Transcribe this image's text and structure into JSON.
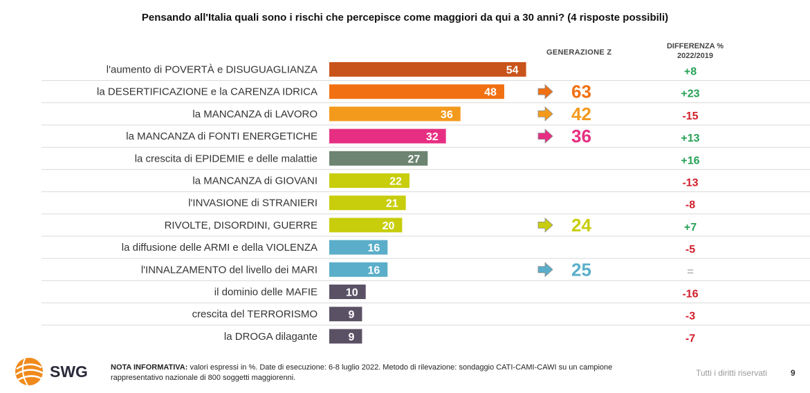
{
  "title": "Pensando all'Italia quali sono i rischi che percepisce come maggiori da qui a 30 anni? (4 risposte possibili)",
  "headers": {
    "genz": "GENERAZIONE Z",
    "diff_line1": "DIFFERENZA %",
    "diff_line2": "2022/2019"
  },
  "colors": {
    "diff_positive": "#27a157",
    "diff_negative": "#d01e2a",
    "diff_neutral": "#bbbbbb",
    "separator": "#d9d9d9"
  },
  "chart_data": {
    "type": "bar",
    "orientation": "horizontal",
    "categories": [
      "l'aumento di POVERTÀ e DISUGUAGLIANZA",
      "la DESERTIFICAZIONE e la CARENZA IDRICA",
      "la MANCANZA di LAVORO",
      "la MANCANZA di FONTI ENERGETICHE",
      "la crescita di EPIDEMIE e delle malattie",
      "la MANCANZA di GIOVANI",
      "l'INVASIONE di STRANIERI",
      "RIVOLTE, DISORDINI, GUERRE",
      "la diffusione delle ARMI e della VIOLENZA",
      "l'INNALZAMENTO del livello dei MARI",
      "il dominio delle MAFIE",
      "crescita del TERRORISMO",
      "la DROGA dilagante"
    ],
    "values": [
      54,
      48,
      36,
      32,
      27,
      22,
      21,
      20,
      16,
      16,
      10,
      9,
      9
    ],
    "bar_colors": [
      "#c9541b",
      "#f07012",
      "#f39a1d",
      "#e62f82",
      "#6c8471",
      "#c8cd0c",
      "#c8cd0c",
      "#c8cd0c",
      "#5aaec9",
      "#5aaec9",
      "#5b5165",
      "#5b5165",
      "#5b5165"
    ],
    "generazione_z": [
      null,
      63,
      42,
      36,
      null,
      null,
      null,
      24,
      null,
      25,
      null,
      null,
      null
    ],
    "diff_2022_2019": [
      "+8",
      "+23",
      "-15",
      "+13",
      "+16",
      "-13",
      "-8",
      "+7",
      "-5",
      "=",
      "-16",
      "-3",
      "-7"
    ]
  },
  "footer": {
    "note_bold": "NOTA INFORMATIVA:",
    "note_text": " valori espressi in %. Date di esecuzione: 6-8 luglio 2022. Metodo di rilevazione: sondaggio CATI-CAMI-CAWI su un campione rappresentativo nazionale di 800 soggetti maggiorenni.",
    "rights": "Tutti i diritti riservati",
    "page": "9",
    "logo": "SWG"
  }
}
